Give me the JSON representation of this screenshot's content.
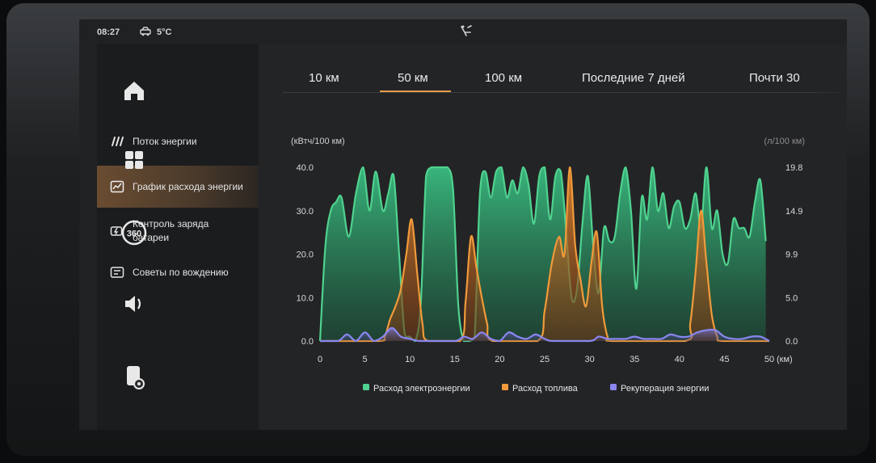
{
  "status": {
    "time": "08:27",
    "temperature": "5°C",
    "icons": [
      "car-icon",
      "user-icon",
      "phone-card-icon",
      "wifi-icon",
      "bluetooth-icon",
      "volume-icon"
    ]
  },
  "dock": [
    "home-icon",
    "apps-grid-icon",
    "camera-360-icon",
    "volume-icon",
    "phone-settings-icon"
  ],
  "dock_360_label": "360",
  "sidebar": {
    "items": [
      {
        "label": "Поток энергии",
        "icon": "energy-flow-icon"
      },
      {
        "label": "График расхода энергии",
        "icon": "chart-icon"
      },
      {
        "label": "Контроль заряда батареи",
        "icon": "battery-charge-icon"
      },
      {
        "label": "Советы по вождению",
        "icon": "tips-icon"
      }
    ]
  },
  "tabs": [
    {
      "label": "10 км"
    },
    {
      "label": "50 км"
    },
    {
      "label": "100 км"
    },
    {
      "label": "Последние 7 дней"
    },
    {
      "label": "Почти 30"
    }
  ],
  "colors": {
    "accent": "#e79a4b",
    "electric": "#4fd28f",
    "fuel": "#f09a3a",
    "regen": "#8a86f0"
  },
  "chart_data": {
    "type": "area",
    "left_unit": "(кВтч/100 км)",
    "right_unit": "(л/100 км)",
    "x_unit": "(км)",
    "x_ticks": [
      "0",
      "5",
      "10",
      "15",
      "20",
      "25",
      "30",
      "35",
      "40",
      "45",
      "50"
    ],
    "y_ticks_left": [
      "0.0",
      "10.0",
      "20.0",
      "30.0",
      "40.0"
    ],
    "y_ticks_right": [
      "0.0",
      "5.0",
      "9.9",
      "14.9",
      "19.8"
    ],
    "xlim": [
      0,
      50
    ],
    "ylim_left": [
      0,
      40
    ],
    "ylim_right": [
      0,
      19.8
    ],
    "legend": [
      "Расход электроэнергии",
      "Расход топлива",
      "Рекуперация энергии"
    ],
    "series": [
      {
        "name": "Расход электроэнергии",
        "axis": "left",
        "x": [
          0,
          0.6,
          1.2,
          1.8,
          2.4,
          3.2,
          4,
          4.8,
          5.5,
          6.2,
          7,
          7.6,
          8.2,
          8.8,
          9.4,
          10,
          10.6,
          11.2,
          11.8,
          12.4,
          13,
          13.6,
          14.2,
          14.8,
          15.4,
          16,
          16.6,
          17.2,
          17.8,
          18.4,
          19,
          19.6,
          20.2,
          20.8,
          21.4,
          22,
          22.6,
          23.2,
          23.8,
          24.4,
          25,
          25.6,
          26.2,
          26.8,
          27.4,
          28,
          28.6,
          29.2,
          29.8,
          30.4,
          31,
          31.6,
          32.2,
          32.8,
          33.4,
          34,
          34.6,
          35.2,
          35.8,
          36.4,
          37,
          37.6,
          38.2,
          38.8,
          39.4,
          40,
          40.6,
          41.2,
          41.8,
          42.4,
          43,
          43.6,
          44.2,
          44.8,
          45.4,
          46,
          46.6,
          47.2,
          47.8,
          48.4,
          49,
          49.6
        ],
        "values": [
          0,
          22,
          30,
          32,
          33,
          24,
          34,
          40,
          30,
          39,
          30,
          34,
          38,
          20,
          2,
          1,
          0,
          8,
          38,
          40,
          40,
          40,
          40,
          35,
          8,
          0,
          0,
          1,
          34,
          39,
          33,
          39,
          40,
          33,
          37,
          34,
          40,
          36,
          27,
          38,
          40,
          28,
          38,
          39,
          25,
          10,
          12,
          27,
          38,
          22,
          11,
          26,
          23,
          24,
          34,
          40,
          30,
          12,
          33,
          28,
          40,
          30,
          34,
          26,
          31,
          32,
          26,
          28,
          34,
          26,
          40,
          26,
          30,
          20,
          18,
          28,
          26,
          26,
          24,
          32,
          37,
          23
        ],
        "color": "#4fd28f"
      },
      {
        "name": "Расход топлива",
        "axis": "left",
        "x": [
          0,
          6.5,
          7.2,
          7.8,
          8.4,
          9,
          9.6,
          10.2,
          10.8,
          11.4,
          12,
          15.6,
          16.2,
          16.8,
          17.4,
          18,
          18.6,
          19.2,
          24.2,
          25,
          25.8,
          26.6,
          27.2,
          27.8,
          28.4,
          29,
          29.6,
          30.2,
          30.8,
          31.4,
          32,
          32.6,
          40.6,
          41.2,
          41.8,
          42.4,
          43,
          43.6,
          44.2,
          44.8,
          50
        ],
        "values": [
          0,
          0,
          1,
          5,
          8,
          12,
          20,
          28,
          16,
          4,
          0,
          0,
          9,
          24,
          17,
          10,
          4,
          0,
          0,
          7,
          18,
          24,
          20,
          40,
          22,
          14,
          8,
          18,
          25,
          8,
          1,
          0,
          0,
          4,
          16,
          30,
          18,
          6,
          1,
          0,
          0
        ],
        "color": "#f09a3a"
      },
      {
        "name": "Рекуперация энергии",
        "axis": "left",
        "x": [
          0,
          2,
          3,
          4,
          5,
          6,
          7,
          8,
          9,
          10,
          11,
          12,
          15,
          16,
          17,
          18,
          19,
          20,
          21,
          22,
          23,
          24,
          25,
          26,
          30,
          31,
          32,
          33,
          34,
          35,
          36,
          37,
          38,
          39,
          40,
          41,
          42,
          43,
          44,
          45,
          46,
          47,
          48,
          49,
          50
        ],
        "values": [
          0,
          0,
          1.5,
          0,
          2,
          0,
          1,
          3,
          1,
          0.5,
          0,
          0,
          0,
          1,
          0.5,
          2,
          0.5,
          0,
          2,
          1,
          0.5,
          1.5,
          0.5,
          0,
          0,
          1,
          0.5,
          0.5,
          0.5,
          1,
          0.5,
          0.5,
          0.5,
          1.5,
          1,
          1,
          2,
          2.5,
          2.5,
          1,
          0.5,
          0.5,
          1,
          1,
          0
        ],
        "color": "#8a86f0"
      }
    ]
  }
}
